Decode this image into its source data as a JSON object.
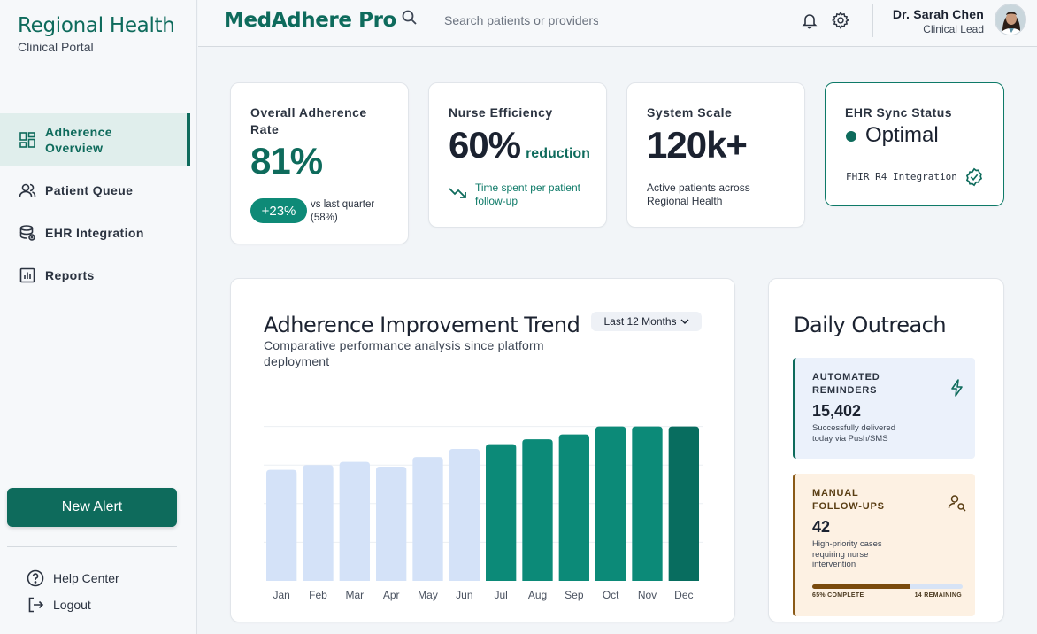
{
  "brand": {
    "title": "Regional Health",
    "subtitle": "Clinical Portal"
  },
  "sidebar": {
    "items": [
      {
        "label": "Adherence Overview",
        "icon": "dashboard-icon",
        "active": true
      },
      {
        "label": "Patient Queue",
        "icon": "users-icon"
      },
      {
        "label": "EHR Integration",
        "icon": "database-icon"
      },
      {
        "label": "Reports",
        "icon": "bar-chart-icon"
      }
    ],
    "new_alert": "New Alert",
    "help": "Help Center",
    "logout": "Logout"
  },
  "header": {
    "app_title": "MedAdhere Pro",
    "search_placeholder": "Search patients or providers...",
    "user_name": "Dr. Sarah Chen",
    "user_role": "Clinical Lead"
  },
  "stats": {
    "adherence": {
      "label": "Overall Adherence Rate",
      "value": "81%",
      "delta": "+23%",
      "note": "vs last quarter (58%)"
    },
    "efficiency": {
      "label": "Nurse Efficiency",
      "value": "60%",
      "unit": "reduction",
      "note": "Time spent per patient follow-up"
    },
    "scale": {
      "label": "System Scale",
      "value": "120k+",
      "note": "Active patients across Regional Health"
    },
    "ehr": {
      "label": "EHR Sync Status",
      "value": "Optimal",
      "note": "FHIR R4 Integration"
    }
  },
  "trend": {
    "title": "Adherence Improvement Trend",
    "subtitle": "Comparative performance analysis since platform deployment",
    "range": "Last 12 Months"
  },
  "chart_data": {
    "type": "bar",
    "categories": [
      "Jan",
      "Feb",
      "Mar",
      "Apr",
      "May",
      "Jun",
      "Jul",
      "Aug",
      "Sep",
      "Oct",
      "Nov",
      "Dec"
    ],
    "values": [
      69,
      72,
      74,
      71,
      77,
      82,
      85,
      88,
      91,
      96,
      96,
      96
    ],
    "ylim": [
      0,
      120
    ],
    "grid": true,
    "colors": {
      "before": "#d4e2f8",
      "after": "#0c8a78",
      "current": "#086d5f"
    },
    "title": "Adherence Improvement Trend"
  },
  "outreach": {
    "title": "Daily Outreach",
    "automated": {
      "label": "AUTOMATED REMINDERS",
      "value": "15,402",
      "note": "Successfully delivered today via Push/SMS"
    },
    "manual": {
      "label": "MANUAL FOLLOW-UPS",
      "value": "42",
      "note": "High-priority cases requiring nurse intervention",
      "progress": 0.65,
      "complete": "65% COMPLETE",
      "remaining": "14 REMAINING"
    }
  }
}
